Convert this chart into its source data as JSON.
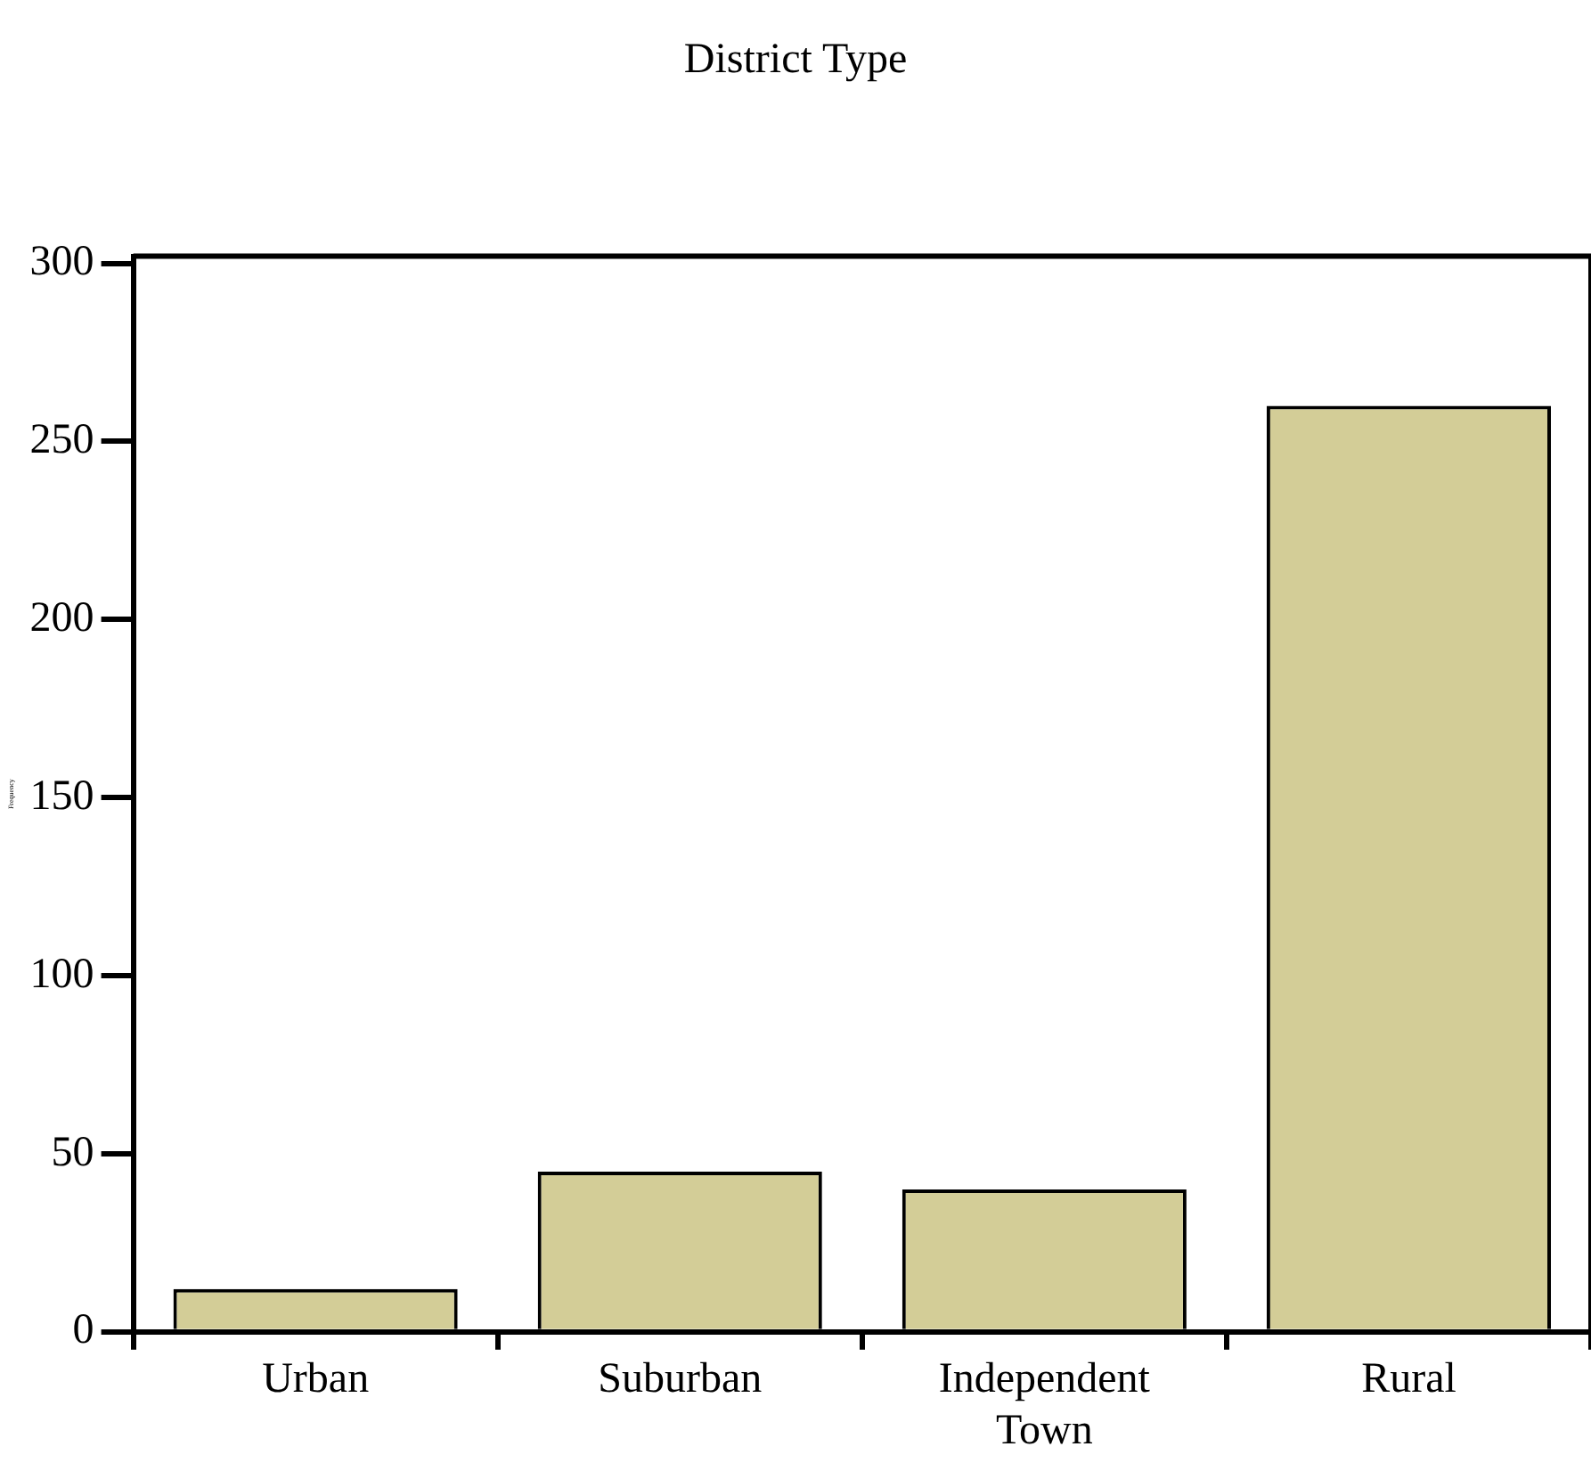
{
  "chart_data": {
    "type": "bar",
    "title": "District Type",
    "ylabel": "Frequency",
    "categories": [
      "Urban",
      "Suburban",
      "Independent Town",
      "Rural"
    ],
    "values": [
      12,
      45,
      40,
      260
    ],
    "color": "#d3cd97",
    "ylim": [
      0,
      302
    ],
    "yticks": [
      0,
      50,
      100,
      150,
      200,
      250,
      300
    ],
    "grid": false,
    "legend": false
  }
}
